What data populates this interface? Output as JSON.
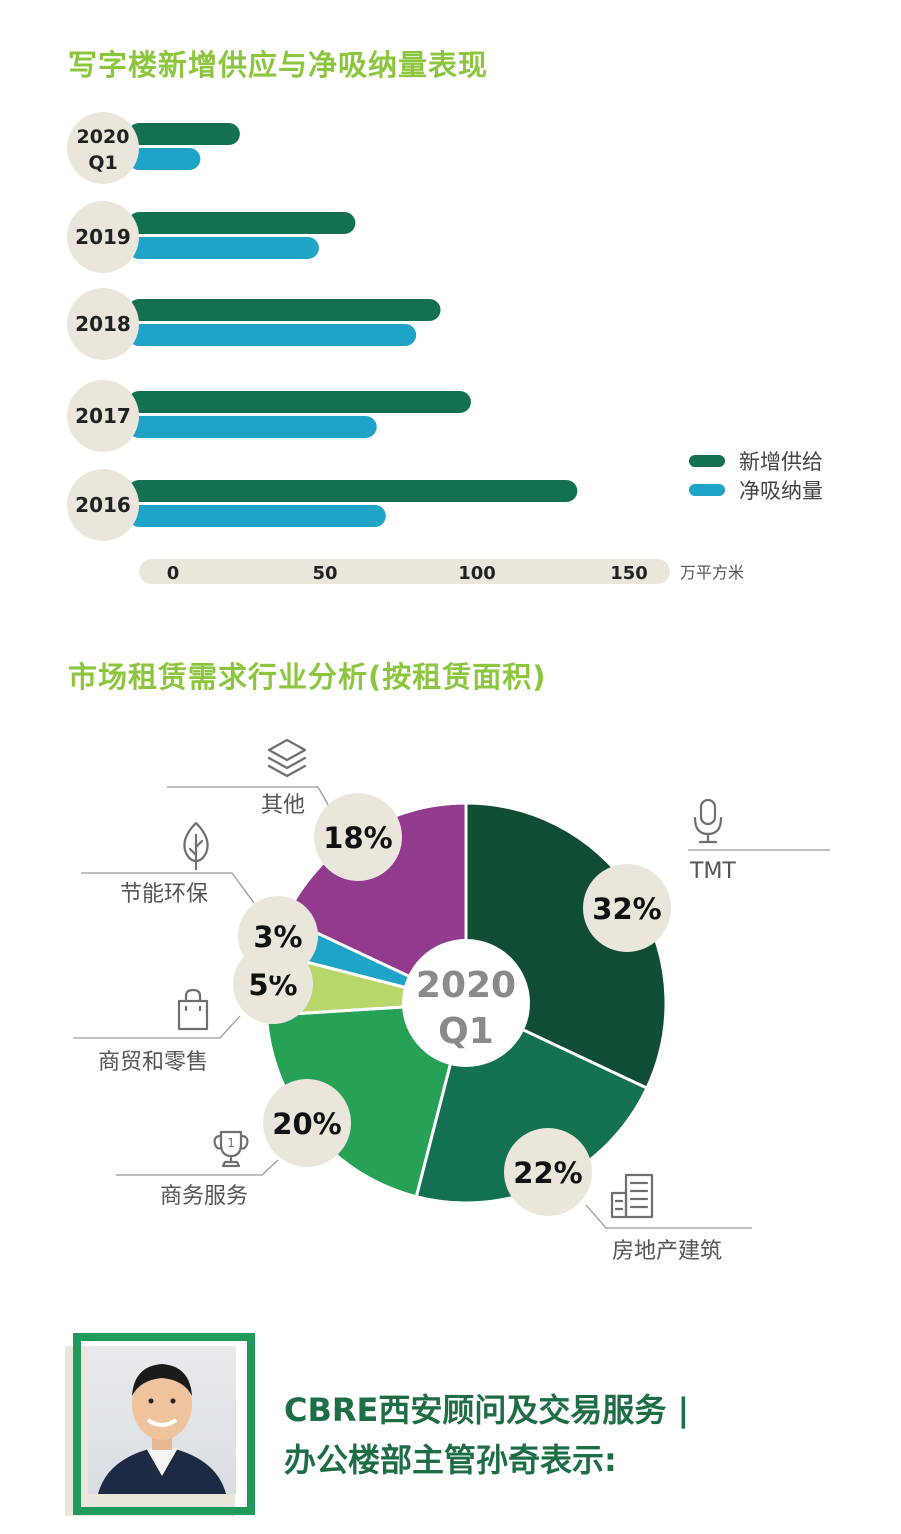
{
  "bar_section": {
    "title": "写字楼新增供应与净吸纳量表现"
  },
  "pie_section": {
    "title": "市场租赁需求行业分析(按租赁面积)"
  },
  "chart_data": [
    {
      "type": "bar",
      "orientation": "horizontal",
      "categories": [
        "2020\nQ1",
        "2019",
        "2018",
        "2017",
        "2016"
      ],
      "series": [
        {
          "name": "新增供给",
          "color": "#137151",
          "values": [
            22,
            60,
            88,
            98,
            133
          ]
        },
        {
          "name": "净吸纳量",
          "color": "#1fa3c6",
          "values": [
            9,
            48,
            80,
            67,
            70
          ]
        }
      ],
      "x_ticks": [
        "0",
        "50",
        "100",
        "150"
      ],
      "xlim": [
        0,
        150
      ],
      "unit": "万平方米",
      "legend_position": "right"
    },
    {
      "type": "pie",
      "center_label": [
        "2020",
        "Q1"
      ],
      "slices": [
        {
          "label": "TMT",
          "value": 32,
          "display": "32%",
          "color": "#0f4d35",
          "icon": "microphone-icon"
        },
        {
          "label": "房地产建筑",
          "value": 22,
          "display": "22%",
          "color": "#137151",
          "icon": "building-icon"
        },
        {
          "label": "商务服务",
          "value": 20,
          "display": "20%",
          "color": "#26a155",
          "icon": "trophy-icon"
        },
        {
          "label": "商贸和零售",
          "value": 5,
          "display": "5%",
          "color": "#b9d66a",
          "icon": "shopping-bag-icon"
        },
        {
          "label": "节能环保",
          "value": 3,
          "display": "3%",
          "color": "#1fa3c6",
          "icon": "leaf-icon"
        },
        {
          "label": "其他",
          "value": 18,
          "display": "18%",
          "color": "#913a8e",
          "icon": "layers-icon"
        }
      ]
    }
  ],
  "profile": {
    "photo_alt": "portrait-photo",
    "line1": "CBRE西安顾问及交易服务 |",
    "line2": "办公楼部主管孙奇表示:"
  },
  "colors": {
    "title_green": "#8cc63f",
    "badge_bg": "#ebe6dc",
    "dark_green": "#1e6e45"
  }
}
